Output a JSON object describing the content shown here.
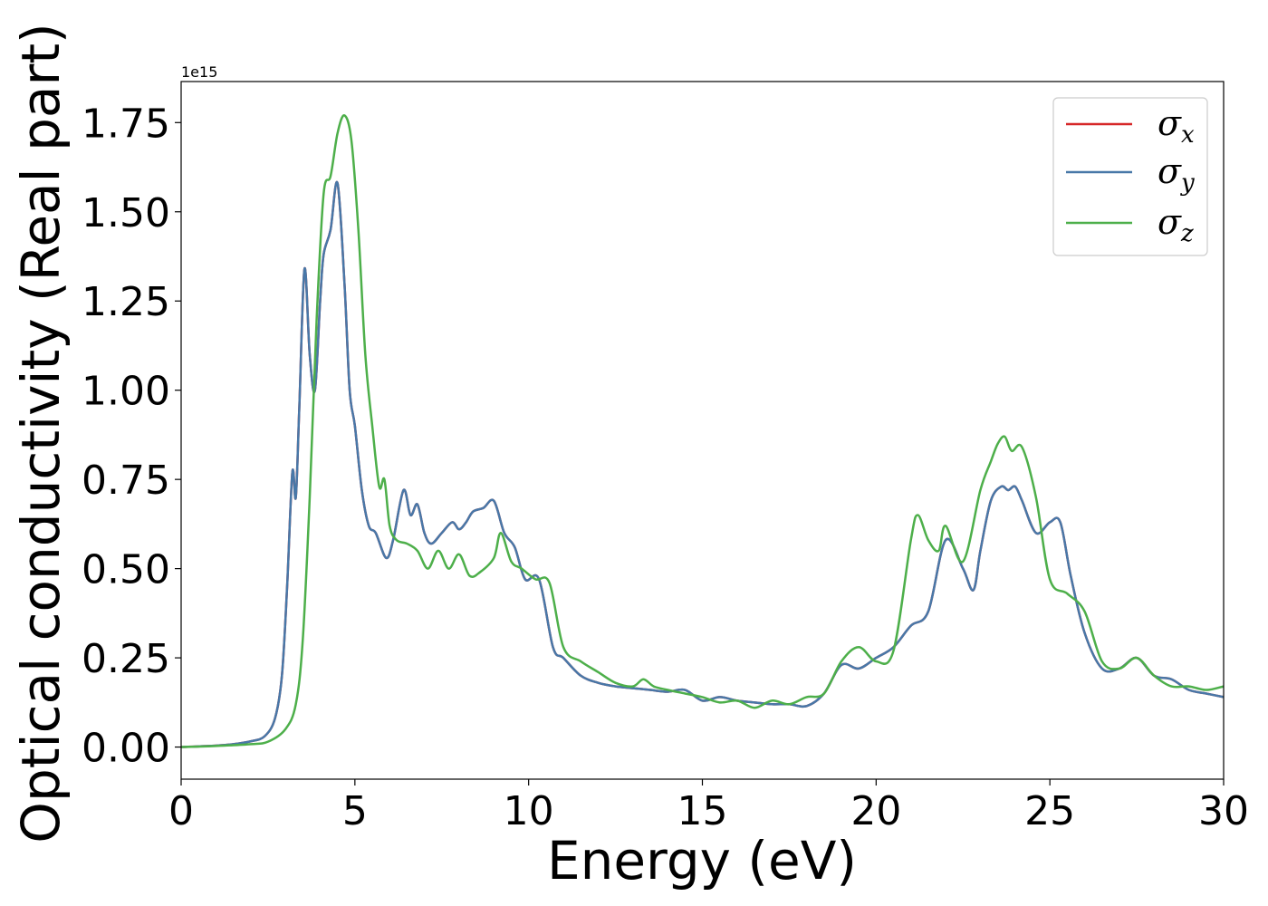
{
  "chart_data": {
    "type": "line",
    "title": "",
    "xlabel": "Energy (eV)",
    "ylabel": "Optical conductivity (Real part)",
    "y_offset_label": "1e15",
    "xlim": [
      0,
      30
    ],
    "ylim": [
      -0.09,
      1.865
    ],
    "x_ticks": [
      0,
      5,
      10,
      15,
      20,
      25,
      30
    ],
    "x_tick_labels": [
      "0",
      "5",
      "10",
      "15",
      "20",
      "25",
      "30"
    ],
    "y_ticks": [
      0.0,
      0.25,
      0.5,
      0.75,
      1.0,
      1.25,
      1.5,
      1.75
    ],
    "y_tick_labels": [
      "0.00",
      "0.25",
      "0.50",
      "0.75",
      "1.00",
      "1.25",
      "1.50",
      "1.75"
    ],
    "grid": false,
    "legend_position": "top-right",
    "series": [
      {
        "name": "σx",
        "legend_base": "σ",
        "legend_sub": "x",
        "color": "#d62728",
        "x": [
          0,
          1,
          1.5,
          2,
          2.4,
          2.7,
          2.9,
          3.05,
          3.2,
          3.3,
          3.4,
          3.55,
          3.7,
          3.85,
          4.0,
          4.1,
          4.3,
          4.5,
          4.7,
          4.85,
          5.0,
          5.2,
          5.4,
          5.6,
          5.9,
          6.1,
          6.4,
          6.6,
          6.8,
          7.0,
          7.2,
          7.5,
          7.8,
          8.0,
          8.2,
          8.4,
          8.7,
          9.0,
          9.3,
          9.6,
          9.9,
          10.3,
          10.7,
          11.0,
          11.5,
          12.0,
          12.5,
          13.0,
          13.5,
          14.0,
          14.5,
          15.0,
          15.5,
          16.0,
          16.5,
          17.0,
          17.5,
          18.0,
          18.5,
          19.0,
          19.5,
          20.0,
          20.5,
          21.0,
          21.5,
          22.0,
          22.5,
          22.8,
          23.0,
          23.3,
          23.6,
          23.8,
          24.0,
          24.2,
          24.6,
          25.0,
          25.3,
          25.6,
          26.0,
          26.5,
          27.0,
          27.5,
          28.0,
          28.5,
          29.0,
          29.5,
          30.0
        ],
        "y": [
          0.0,
          0.004,
          0.008,
          0.016,
          0.03,
          0.08,
          0.2,
          0.45,
          0.77,
          0.7,
          0.95,
          1.34,
          1.1,
          1.0,
          1.25,
          1.38,
          1.45,
          1.58,
          1.3,
          1.0,
          0.9,
          0.72,
          0.62,
          0.6,
          0.53,
          0.58,
          0.72,
          0.65,
          0.68,
          0.6,
          0.57,
          0.6,
          0.63,
          0.61,
          0.63,
          0.66,
          0.67,
          0.69,
          0.6,
          0.56,
          0.47,
          0.47,
          0.28,
          0.25,
          0.2,
          0.18,
          0.17,
          0.165,
          0.16,
          0.155,
          0.16,
          0.13,
          0.14,
          0.13,
          0.125,
          0.12,
          0.12,
          0.115,
          0.15,
          0.23,
          0.22,
          0.25,
          0.28,
          0.34,
          0.38,
          0.58,
          0.5,
          0.44,
          0.55,
          0.69,
          0.73,
          0.72,
          0.73,
          0.69,
          0.6,
          0.63,
          0.63,
          0.48,
          0.32,
          0.22,
          0.22,
          0.25,
          0.2,
          0.19,
          0.16,
          0.15,
          0.14
        ]
      },
      {
        "name": "σy",
        "legend_base": "σ",
        "legend_sub": "y",
        "color": "#4878a8",
        "x": [
          0,
          1,
          1.5,
          2,
          2.4,
          2.7,
          2.9,
          3.05,
          3.2,
          3.3,
          3.4,
          3.55,
          3.7,
          3.85,
          4.0,
          4.1,
          4.3,
          4.5,
          4.7,
          4.85,
          5.0,
          5.2,
          5.4,
          5.6,
          5.9,
          6.1,
          6.4,
          6.6,
          6.8,
          7.0,
          7.2,
          7.5,
          7.8,
          8.0,
          8.2,
          8.4,
          8.7,
          9.0,
          9.3,
          9.6,
          9.9,
          10.3,
          10.7,
          11.0,
          11.5,
          12.0,
          12.5,
          13.0,
          13.5,
          14.0,
          14.5,
          15.0,
          15.5,
          16.0,
          16.5,
          17.0,
          17.5,
          18.0,
          18.5,
          19.0,
          19.5,
          20.0,
          20.5,
          21.0,
          21.5,
          22.0,
          22.5,
          22.8,
          23.0,
          23.3,
          23.6,
          23.8,
          24.0,
          24.2,
          24.6,
          25.0,
          25.3,
          25.6,
          26.0,
          26.5,
          27.0,
          27.5,
          28.0,
          28.5,
          29.0,
          29.5,
          30.0
        ],
        "y": [
          0.0,
          0.004,
          0.008,
          0.016,
          0.03,
          0.08,
          0.2,
          0.45,
          0.77,
          0.7,
          0.95,
          1.34,
          1.1,
          1.0,
          1.25,
          1.38,
          1.45,
          1.58,
          1.3,
          1.0,
          0.9,
          0.72,
          0.62,
          0.6,
          0.53,
          0.58,
          0.72,
          0.65,
          0.68,
          0.6,
          0.57,
          0.6,
          0.63,
          0.61,
          0.63,
          0.66,
          0.67,
          0.69,
          0.6,
          0.56,
          0.47,
          0.47,
          0.28,
          0.25,
          0.2,
          0.18,
          0.17,
          0.165,
          0.16,
          0.155,
          0.16,
          0.13,
          0.14,
          0.13,
          0.125,
          0.12,
          0.12,
          0.115,
          0.15,
          0.23,
          0.22,
          0.25,
          0.28,
          0.34,
          0.38,
          0.58,
          0.5,
          0.44,
          0.55,
          0.69,
          0.73,
          0.72,
          0.73,
          0.69,
          0.6,
          0.63,
          0.63,
          0.48,
          0.32,
          0.22,
          0.22,
          0.25,
          0.2,
          0.19,
          0.16,
          0.15,
          0.14
        ]
      },
      {
        "name": "σz",
        "legend_base": "σ",
        "legend_sub": "z",
        "color": "#4daf4a",
        "x": [
          0,
          1,
          2,
          2.5,
          3.0,
          3.3,
          3.5,
          3.7,
          3.9,
          4.1,
          4.3,
          4.5,
          4.7,
          4.9,
          5.1,
          5.3,
          5.5,
          5.7,
          5.85,
          6.0,
          6.2,
          6.5,
          6.8,
          7.1,
          7.4,
          7.7,
          8.0,
          8.3,
          8.6,
          9.0,
          9.2,
          9.5,
          9.8,
          10.2,
          10.6,
          11.0,
          11.5,
          12.0,
          12.5,
          13.0,
          13.3,
          13.6,
          14.0,
          14.5,
          15.0,
          15.5,
          16.0,
          16.5,
          17.0,
          17.5,
          18.0,
          18.5,
          19.0,
          19.5,
          20.0,
          20.5,
          21.0,
          21.2,
          21.5,
          21.8,
          22.0,
          22.5,
          23.0,
          23.3,
          23.5,
          23.7,
          23.9,
          24.2,
          24.6,
          25.0,
          25.5,
          26.0,
          26.5,
          27.0,
          27.5,
          28.0,
          28.5,
          29.0,
          29.5,
          30.0
        ],
        "y": [
          0.0,
          0.003,
          0.008,
          0.015,
          0.05,
          0.12,
          0.3,
          0.7,
          1.2,
          1.55,
          1.6,
          1.72,
          1.77,
          1.7,
          1.45,
          1.1,
          0.9,
          0.73,
          0.75,
          0.62,
          0.58,
          0.57,
          0.55,
          0.5,
          0.55,
          0.5,
          0.54,
          0.48,
          0.49,
          0.53,
          0.6,
          0.52,
          0.5,
          0.47,
          0.46,
          0.28,
          0.24,
          0.21,
          0.18,
          0.17,
          0.19,
          0.17,
          0.16,
          0.15,
          0.14,
          0.125,
          0.13,
          0.11,
          0.13,
          0.12,
          0.14,
          0.15,
          0.24,
          0.28,
          0.24,
          0.27,
          0.58,
          0.65,
          0.58,
          0.55,
          0.62,
          0.52,
          0.72,
          0.8,
          0.85,
          0.87,
          0.83,
          0.84,
          0.7,
          0.47,
          0.43,
          0.38,
          0.24,
          0.22,
          0.25,
          0.2,
          0.17,
          0.17,
          0.16,
          0.17
        ]
      }
    ]
  }
}
